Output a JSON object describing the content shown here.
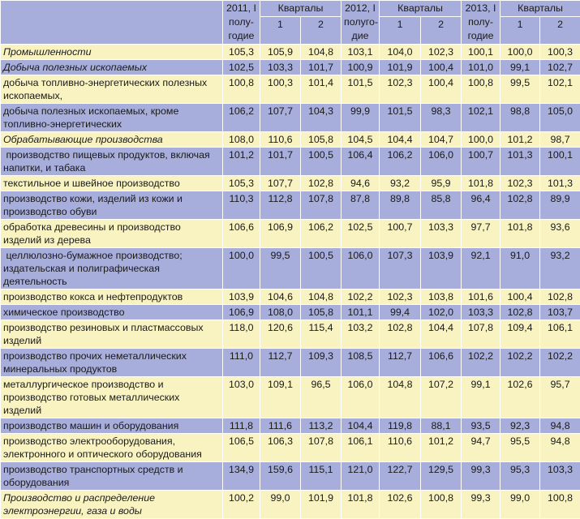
{
  "header": {
    "h2011": "2011, I полу-годие",
    "h2012": "2012, I полуго-дие",
    "h2013": "2013, I полу-годие",
    "quarters": "Кварталы",
    "q1": "1",
    "q2": "2"
  },
  "colors": {
    "row_yellow": "#f8f3c1",
    "row_blue": "#a8aedb"
  },
  "rows": [
    {
      "label": "Промышленности",
      "italic": true,
      "values": [
        "105,3",
        "105,9",
        "104,8",
        "103,1",
        "104,0",
        "102,3",
        "100,1",
        "100,0",
        "100,3"
      ]
    },
    {
      "label": "Добыча полезных ископаемых",
      "italic": true,
      "values": [
        "102,5",
        "103,3",
        "101,7",
        "100,9",
        "101,9",
        "100,4",
        "101,0",
        "99,1",
        "102,7"
      ]
    },
    {
      "label": "добыча топливно-энергетических полезных ископаемых,",
      "values": [
        "100,8",
        "100,3",
        "101,4",
        "101,5",
        "102,3",
        "100,4",
        "100,8",
        "99,5",
        "102,1"
      ]
    },
    {
      "label": "добыча полезных ископаемых, кроме топливно-энергетических",
      "values": [
        "106,2",
        "107,7",
        "104,3",
        "99,9",
        "101,5",
        "98,3",
        "102,1",
        "98,8",
        "105,0"
      ]
    },
    {
      "label": "Обрабатывающие производства",
      "italic": true,
      "values": [
        "108,0",
        "110,6",
        "105,8",
        "104,5",
        "104,4",
        "104,7",
        "100,0",
        "101,2",
        "98,7"
      ]
    },
    {
      "label": " производство пищевых продуктов, включая напитки, и табака",
      "values": [
        "101,2",
        "101,7",
        "100,5",
        "106,4",
        "106,2",
        "106,0",
        "100,7",
        "101,3",
        "100,1"
      ]
    },
    {
      "label": "текстильное и швейное производство",
      "values": [
        "105,3",
        "107,7",
        "102,8",
        "94,6",
        "93,2",
        "95,9",
        "101,8",
        "102,3",
        "101,3"
      ]
    },
    {
      "label": "производство кожи, изделий из кожи и производство обуви",
      "values": [
        "110,3",
        "112,8",
        "107,8",
        "87,8",
        "89,8",
        "85,8",
        "96,4",
        "102,8",
        "89,9"
      ]
    },
    {
      "label": "обработка древесины и производство изделий из дерева",
      "values": [
        "106,6",
        "106,9",
        "106,2",
        "102,5",
        "100,7",
        "103,3",
        "97,7",
        "101,8",
        "93,6"
      ]
    },
    {
      "label": " целлюлозно-бумажное производство; издательская и полиграфическая деятельность",
      "values": [
        "100,0",
        "99,5",
        "100,5",
        "106,0",
        "107,3",
        "103,9",
        "92,1",
        "91,0",
        "93,2"
      ]
    },
    {
      "label": "производство кокса и нефтепродуктов",
      "values": [
        "103,9",
        "104,6",
        "104,8",
        "102,2",
        "102,3",
        "103,8",
        "101,6",
        "100,4",
        "102,8"
      ]
    },
    {
      "label": "химическое производство",
      "values": [
        "106,9",
        "108,0",
        "105,8",
        "101,1",
        "99,4",
        "102,0",
        "103,3",
        "102,8",
        "103,7"
      ]
    },
    {
      "label": "производство резиновых и пластмассовых изделий",
      "values": [
        "118,0",
        "120,6",
        "115,4",
        "103,2",
        "102,8",
        "104,4",
        "107,8",
        "109,4",
        "106,1"
      ]
    },
    {
      "label": "производство прочих неметаллических минеральных продуктов",
      "values": [
        "111,0",
        "112,7",
        "109,3",
        "108,5",
        "112,7",
        "106,6",
        "102,2",
        "102,2",
        "102,2"
      ]
    },
    {
      "label": "металлургическое производство и производство готовых металлических изделий",
      "values": [
        "103,0",
        "109,1",
        "96,5",
        "106,0",
        "104,8",
        "107,2",
        "99,1",
        "102,6",
        "95,7"
      ]
    },
    {
      "label": "производство машин и оборудования",
      "values": [
        "111,8",
        "111,6",
        "113,2",
        "104,4",
        "119,8",
        "88,1",
        "93,5",
        "92,3",
        "94,8"
      ]
    },
    {
      "label": "производство электрооборудования, электронного и оптического оборудования",
      "values": [
        "106,5",
        "106,3",
        "107,8",
        "106,1",
        "110,6",
        "101,2",
        "94,7",
        "95,5",
        "94,8"
      ]
    },
    {
      "label": "производство транспортных средств и оборудования",
      "values": [
        "134,9",
        "159,6",
        "115,1",
        "121,0",
        "122,7",
        "129,5",
        "99,3",
        "95,3",
        "103,3"
      ]
    },
    {
      "label": "Производство и распределение электроэнергии, газа и воды",
      "italic": true,
      "values": [
        "100,2",
        "99,0",
        "101,9",
        "101,8",
        "102,6",
        "100,8",
        "99,3",
        "99,0",
        "100,8"
      ]
    }
  ]
}
